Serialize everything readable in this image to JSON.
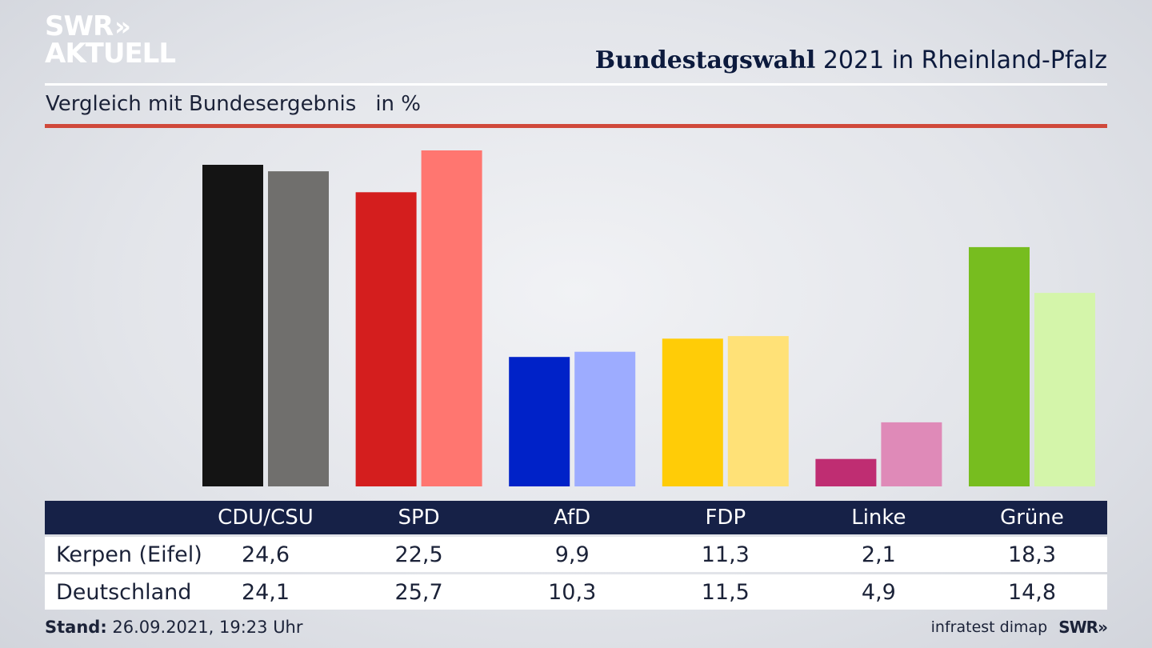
{
  "header": {
    "logo_line1": "SWR",
    "logo_line2": "AKTUELL",
    "title_bold": "Bundestagswahl",
    "title_rest": " 2021 in Rheinland-Pfalz",
    "subtitle": "Vergleich mit Bundesergebnis",
    "unit": "in %"
  },
  "footer": {
    "stand_label": "Stand:",
    "stand_value": "26.09.2021, 19:23 Uhr",
    "source": "infratest dimap",
    "source_logo": "SWR"
  },
  "chart_data": {
    "type": "bar",
    "title": "Bundestagswahl 2021 in Rheinland-Pfalz",
    "subtitle": "Vergleich mit Bundesergebnis",
    "ylabel": "in %",
    "categories": [
      "CDU/CSU",
      "SPD",
      "AfD",
      "FDP",
      "Linke",
      "Grüne"
    ],
    "series": [
      {
        "name": "Kerpen (Eifel)",
        "values": [
          24.6,
          22.5,
          9.9,
          11.3,
          2.1,
          18.3
        ],
        "labels": [
          "24,6",
          "22,5",
          "9,9",
          "11,3",
          "2,1",
          "18,3"
        ],
        "colors": [
          "#141414",
          "#d41e1e",
          "#0022c8",
          "#ffcc07",
          "#bf2d72",
          "#77bd1f"
        ]
      },
      {
        "name": "Deutschland",
        "values": [
          24.1,
          25.7,
          10.3,
          11.5,
          4.9,
          14.8
        ],
        "labels": [
          "24,1",
          "25,7",
          "10,3",
          "11,5",
          "4,9",
          "14,8"
        ],
        "colors": [
          "#706f6d",
          "#ff7670",
          "#9dacff",
          "#ffe177",
          "#df8ab8",
          "#d4f5aa"
        ]
      }
    ],
    "ylim": [
      0,
      27.5
    ],
    "grid": false,
    "legend": "table-below"
  }
}
